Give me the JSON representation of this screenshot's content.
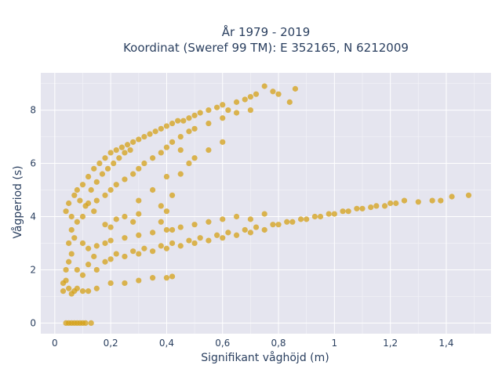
{
  "chart_data": {
    "type": "scatter",
    "title_lines": [
      "År 1979 - 2019",
      "Koordinat (Sweref 99 TM): E 352165, N 6212009"
    ],
    "xlabel": "Signifikant våghöjd (m)",
    "ylabel": "Vågperiod (s)",
    "xlim": [
      -0.05,
      1.56
    ],
    "ylim": [
      -0.4,
      9.4
    ],
    "xticks": [
      0,
      0.2,
      0.4,
      0.6,
      0.8,
      1,
      1.2,
      1.4
    ],
    "xtick_labels": [
      "0",
      "0,2",
      "0,4",
      "0,6",
      "0,8",
      "1",
      "1,2",
      "1,4"
    ],
    "yticks": [
      0,
      2,
      4,
      6,
      8
    ],
    "ytick_labels": [
      "0",
      "2",
      "4",
      "6",
      "8"
    ],
    "grid": true,
    "marker_color": "#d4a017",
    "background_color": "#e5e5ef",
    "series": [
      {
        "points": [
          [
            0.04,
            0
          ],
          [
            0.05,
            0
          ],
          [
            0.06,
            0
          ],
          [
            0.07,
            0
          ],
          [
            0.08,
            0
          ],
          [
            0.09,
            0
          ],
          [
            0.1,
            0
          ],
          [
            0.11,
            0
          ],
          [
            0.13,
            0
          ],
          [
            0.03,
            1.2
          ],
          [
            0.03,
            1.5
          ],
          [
            0.04,
            1.6
          ],
          [
            0.05,
            1.3
          ],
          [
            0.06,
            1.1
          ],
          [
            0.07,
            1.2
          ],
          [
            0.08,
            1.3
          ],
          [
            0.1,
            1.2
          ],
          [
            0.12,
            1.2
          ],
          [
            0.15,
            1.3
          ],
          [
            0.2,
            1.5
          ],
          [
            0.25,
            1.5
          ],
          [
            0.3,
            1.6
          ],
          [
            0.35,
            1.7
          ],
          [
            0.4,
            1.7
          ],
          [
            0.42,
            1.75
          ],
          [
            0.04,
            2.0
          ],
          [
            0.05,
            2.3
          ],
          [
            0.06,
            2.6
          ],
          [
            0.08,
            2.0
          ],
          [
            0.1,
            1.8
          ],
          [
            0.12,
            2.2
          ],
          [
            0.14,
            2.5
          ],
          [
            0.15,
            2.0
          ],
          [
            0.18,
            2.3
          ],
          [
            0.2,
            2.4
          ],
          [
            0.22,
            2.6
          ],
          [
            0.25,
            2.5
          ],
          [
            0.28,
            2.7
          ],
          [
            0.3,
            2.6
          ],
          [
            0.32,
            2.8
          ],
          [
            0.35,
            2.7
          ],
          [
            0.38,
            2.9
          ],
          [
            0.4,
            2.8
          ],
          [
            0.42,
            3.0
          ],
          [
            0.45,
            2.9
          ],
          [
            0.48,
            3.1
          ],
          [
            0.5,
            3.0
          ],
          [
            0.52,
            3.2
          ],
          [
            0.55,
            3.1
          ],
          [
            0.58,
            3.3
          ],
          [
            0.6,
            3.2
          ],
          [
            0.62,
            3.4
          ],
          [
            0.65,
            3.3
          ],
          [
            0.68,
            3.5
          ],
          [
            0.7,
            3.4
          ],
          [
            0.72,
            3.6
          ],
          [
            0.75,
            3.5
          ],
          [
            0.78,
            3.7
          ],
          [
            0.8,
            3.7
          ],
          [
            0.83,
            3.8
          ],
          [
            0.85,
            3.8
          ],
          [
            0.88,
            3.9
          ],
          [
            0.9,
            3.9
          ],
          [
            0.93,
            4.0
          ],
          [
            0.95,
            4.0
          ],
          [
            0.98,
            4.1
          ],
          [
            1.0,
            4.1
          ],
          [
            1.03,
            4.2
          ],
          [
            1.05,
            4.2
          ],
          [
            1.08,
            4.3
          ],
          [
            1.1,
            4.3
          ],
          [
            1.13,
            4.35
          ],
          [
            1.15,
            4.4
          ],
          [
            1.18,
            4.4
          ],
          [
            1.2,
            4.5
          ],
          [
            1.22,
            4.5
          ],
          [
            1.25,
            4.6
          ],
          [
            1.3,
            4.55
          ],
          [
            1.35,
            4.6
          ],
          [
            1.38,
            4.6
          ],
          [
            1.42,
            4.75
          ],
          [
            1.48,
            4.8
          ],
          [
            0.05,
            3.0
          ],
          [
            0.06,
            3.5
          ],
          [
            0.07,
            3.2
          ],
          [
            0.08,
            3.8
          ],
          [
            0.1,
            3.0
          ],
          [
            0.12,
            2.8
          ],
          [
            0.15,
            2.9
          ],
          [
            0.18,
            3.0
          ],
          [
            0.2,
            3.1
          ],
          [
            0.25,
            3.2
          ],
          [
            0.3,
            3.3
          ],
          [
            0.35,
            3.4
          ],
          [
            0.4,
            3.5
          ],
          [
            0.45,
            3.6
          ],
          [
            0.5,
            3.7
          ],
          [
            0.55,
            3.8
          ],
          [
            0.6,
            3.9
          ],
          [
            0.65,
            4.0
          ],
          [
            0.7,
            3.9
          ],
          [
            0.75,
            4.1
          ],
          [
            0.04,
            4.2
          ],
          [
            0.05,
            4.5
          ],
          [
            0.06,
            4.0
          ],
          [
            0.07,
            4.8
          ],
          [
            0.08,
            5.0
          ],
          [
            0.09,
            4.6
          ],
          [
            0.1,
            5.2
          ],
          [
            0.11,
            4.4
          ],
          [
            0.12,
            5.5
          ],
          [
            0.13,
            5.0
          ],
          [
            0.14,
            5.8
          ],
          [
            0.15,
            5.3
          ],
          [
            0.16,
            6.0
          ],
          [
            0.17,
            5.6
          ],
          [
            0.18,
            6.2
          ],
          [
            0.19,
            5.8
          ],
          [
            0.2,
            6.4
          ],
          [
            0.21,
            6.0
          ],
          [
            0.22,
            6.5
          ],
          [
            0.23,
            6.2
          ],
          [
            0.24,
            6.6
          ],
          [
            0.25,
            6.4
          ],
          [
            0.26,
            6.7
          ],
          [
            0.27,
            6.5
          ],
          [
            0.28,
            6.8
          ],
          [
            0.3,
            6.9
          ],
          [
            0.32,
            7.0
          ],
          [
            0.34,
            7.1
          ],
          [
            0.36,
            7.2
          ],
          [
            0.38,
            7.3
          ],
          [
            0.4,
            7.4
          ],
          [
            0.42,
            7.5
          ],
          [
            0.44,
            7.6
          ],
          [
            0.46,
            7.6
          ],
          [
            0.48,
            7.7
          ],
          [
            0.5,
            7.8
          ],
          [
            0.52,
            7.9
          ],
          [
            0.55,
            8.0
          ],
          [
            0.58,
            8.1
          ],
          [
            0.6,
            8.2
          ],
          [
            0.62,
            8.0
          ],
          [
            0.65,
            8.3
          ],
          [
            0.68,
            8.4
          ],
          [
            0.7,
            8.5
          ],
          [
            0.72,
            8.6
          ],
          [
            0.75,
            8.9
          ],
          [
            0.78,
            8.7
          ],
          [
            0.8,
            8.6
          ],
          [
            0.84,
            8.3
          ],
          [
            0.86,
            8.8
          ],
          [
            0.1,
            4.0
          ],
          [
            0.12,
            4.5
          ],
          [
            0.14,
            4.2
          ],
          [
            0.15,
            4.6
          ],
          [
            0.18,
            4.8
          ],
          [
            0.2,
            5.0
          ],
          [
            0.22,
            5.2
          ],
          [
            0.25,
            5.4
          ],
          [
            0.28,
            5.6
          ],
          [
            0.3,
            5.8
          ],
          [
            0.32,
            6.0
          ],
          [
            0.35,
            6.2
          ],
          [
            0.38,
            6.4
          ],
          [
            0.4,
            6.6
          ],
          [
            0.42,
            6.8
          ],
          [
            0.45,
            7.0
          ],
          [
            0.48,
            7.2
          ],
          [
            0.5,
            7.3
          ],
          [
            0.55,
            7.5
          ],
          [
            0.6,
            7.7
          ],
          [
            0.65,
            7.9
          ],
          [
            0.7,
            8.0
          ],
          [
            0.3,
            4.6
          ],
          [
            0.35,
            5.0
          ],
          [
            0.38,
            4.4
          ],
          [
            0.4,
            5.5
          ],
          [
            0.42,
            4.8
          ],
          [
            0.45,
            5.6
          ],
          [
            0.48,
            6.0
          ],
          [
            0.5,
            6.2
          ],
          [
            0.55,
            6.5
          ],
          [
            0.6,
            6.8
          ],
          [
            0.45,
            6.5
          ],
          [
            0.4,
            4.2
          ],
          [
            0.38,
            3.8
          ],
          [
            0.42,
            3.5
          ],
          [
            0.2,
            3.6
          ],
          [
            0.25,
            4.0
          ],
          [
            0.22,
            3.9
          ],
          [
            0.3,
            4.1
          ],
          [
            0.18,
            3.7
          ],
          [
            0.28,
            3.8
          ]
        ]
      }
    ]
  }
}
